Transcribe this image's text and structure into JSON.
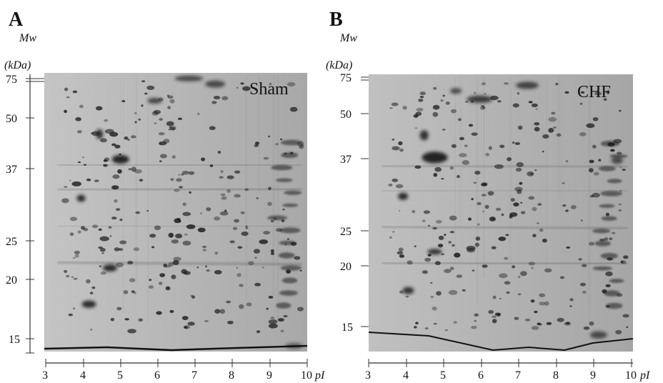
{
  "panels": [
    {
      "letter": "A",
      "mw_label": "Mw",
      "mw_unit": "(kDa)",
      "condition": "Sham",
      "mw_ticks": [
        "75",
        "50",
        "37",
        "25",
        "20",
        "15"
      ],
      "pi_ticks": [
        "3",
        "4",
        "5",
        "6",
        "7",
        "8",
        "9",
        "10"
      ],
      "pi_label": "pI"
    },
    {
      "letter": "B",
      "mw_label": "Mw",
      "mw_unit": "(kDa)",
      "condition": "CHF",
      "mw_ticks": [
        "75",
        "50",
        "37",
        "25",
        "20",
        "15"
      ],
      "pi_ticks": [
        "3",
        "4",
        "5",
        "6",
        "7",
        "8",
        "9",
        "10"
      ],
      "pi_label": "pI"
    }
  ],
  "colors": {
    "gel_background": "#b4b4b4",
    "spot": "#1a1a1a",
    "axis": "#333333"
  }
}
